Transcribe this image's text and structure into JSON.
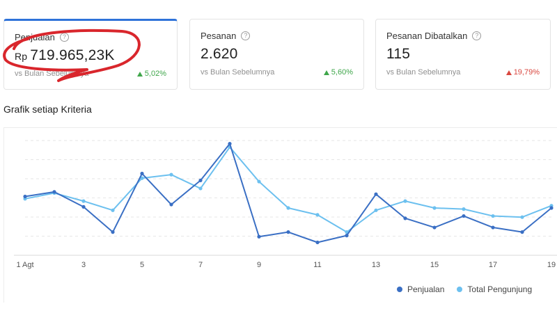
{
  "cards": [
    {
      "title": "Penjualan",
      "currency": "Rp",
      "value": "719.965,23K",
      "compare": "vs Bulan Sebelumnya",
      "change": "5,02%",
      "direction": "up"
    },
    {
      "title": "Pesanan",
      "currency": "",
      "value": "2.620",
      "compare": "vs Bulan Sebelumnya",
      "change": "5,60%",
      "direction": "up"
    },
    {
      "title": "Pesanan Dibatalkan",
      "currency": "",
      "value": "115",
      "compare": "vs Bulan Sebelumnya",
      "change": "19,79%",
      "direction": "down"
    }
  ],
  "help_icon": "?",
  "section_title": "Grafik setiap Kriteria",
  "colors": {
    "accent": "#2f73d9",
    "series1": "#3a6fc4",
    "series2": "#6cc0ef",
    "up": "#3fa64a",
    "down": "#d9473f",
    "annotation": "#d9262c"
  },
  "chart_data": {
    "type": "line",
    "x": [
      1,
      2,
      3,
      4,
      5,
      6,
      7,
      8,
      9,
      10,
      11,
      12,
      13,
      14,
      15,
      16,
      17,
      18,
      19
    ],
    "tick_labels": [
      "1 Agt",
      "3",
      "5",
      "7",
      "9",
      "11",
      "13",
      "15",
      "17",
      "19"
    ],
    "tick_x": [
      1,
      3,
      5,
      7,
      9,
      11,
      13,
      15,
      17,
      19
    ],
    "ylim": [
      0,
      100
    ],
    "grid": true,
    "legend_position": "bottom-right",
    "series": [
      {
        "name": "Penjualan",
        "color": "#3a6fc4",
        "values": [
          50,
          54,
          41,
          19,
          70,
          43,
          64,
          96,
          15,
          19,
          10,
          16,
          52,
          31,
          23,
          33,
          23,
          19,
          40
        ]
      },
      {
        "name": "Total Pengunjung",
        "color": "#6cc0ef",
        "values": [
          48,
          53,
          46,
          38,
          66,
          69,
          57,
          93,
          63,
          40,
          34,
          19,
          38,
          46,
          40,
          39,
          33,
          32,
          42
        ]
      }
    ]
  }
}
